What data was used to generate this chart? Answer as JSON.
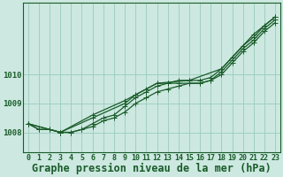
{
  "background_color": "#cce8e0",
  "plot_bg_color": "#cce8e0",
  "grid_color": "#99ccbb",
  "line_color": "#1a5c2a",
  "marker_color": "#1a5c2a",
  "title": "Graphe pression niveau de la mer (hPa)",
  "xlim": [
    -0.5,
    23.5
  ],
  "ylim": [
    1007.3,
    1012.5
  ],
  "yticks": [
    1008,
    1009,
    1010
  ],
  "xticks": [
    0,
    1,
    2,
    3,
    4,
    5,
    6,
    7,
    8,
    9,
    10,
    11,
    12,
    13,
    14,
    15,
    16,
    17,
    18,
    19,
    20,
    21,
    22,
    23
  ],
  "series": [
    {
      "x": [
        0,
        1,
        2,
        3,
        4,
        5,
        6,
        7,
        8,
        9,
        10,
        11,
        12,
        13,
        14,
        15,
        16,
        17,
        18,
        19,
        20,
        21,
        22,
        23
      ],
      "y": [
        1008.3,
        1008.1,
        1008.1,
        1008.0,
        1008.0,
        1008.1,
        1008.2,
        1008.4,
        1008.5,
        1008.7,
        1009.0,
        1009.2,
        1009.4,
        1009.5,
        1009.6,
        1009.7,
        1009.7,
        1009.8,
        1010.0,
        1010.4,
        1010.8,
        1011.1,
        1011.5,
        1011.8
      ]
    },
    {
      "x": [
        0,
        1,
        2,
        3,
        4,
        5,
        6,
        7,
        8,
        9,
        10,
        11,
        12,
        13,
        14,
        15,
        16,
        17,
        18,
        19,
        20,
        21,
        22,
        23
      ],
      "y": [
        1008.3,
        1008.1,
        1008.1,
        1008.0,
        1008.0,
        1008.1,
        1008.3,
        1008.5,
        1008.6,
        1008.9,
        1009.2,
        1009.4,
        1009.6,
        1009.7,
        1009.7,
        1009.7,
        1009.7,
        1009.8,
        1010.1,
        1010.5,
        1010.9,
        1011.2,
        1011.6,
        1011.9
      ]
    },
    {
      "x": [
        0,
        3,
        6,
        9,
        10,
        11,
        12,
        13,
        14,
        15,
        16,
        17,
        18,
        19,
        20,
        21,
        22,
        23
      ],
      "y": [
        1008.3,
        1008.0,
        1008.5,
        1009.0,
        1009.3,
        1009.5,
        1009.7,
        1009.7,
        1009.8,
        1009.8,
        1009.8,
        1009.9,
        1010.2,
        1010.6,
        1011.0,
        1011.3,
        1011.7,
        1012.0
      ]
    },
    {
      "x": [
        0,
        3,
        6,
        9,
        12,
        15,
        18,
        21,
        23
      ],
      "y": [
        1008.3,
        1008.0,
        1008.6,
        1009.1,
        1009.7,
        1009.8,
        1010.2,
        1011.4,
        1012.0
      ]
    }
  ],
  "title_fontsize": 8.5,
  "tick_fontsize": 6,
  "linewidth": 0.9,
  "markersize": 2.5
}
